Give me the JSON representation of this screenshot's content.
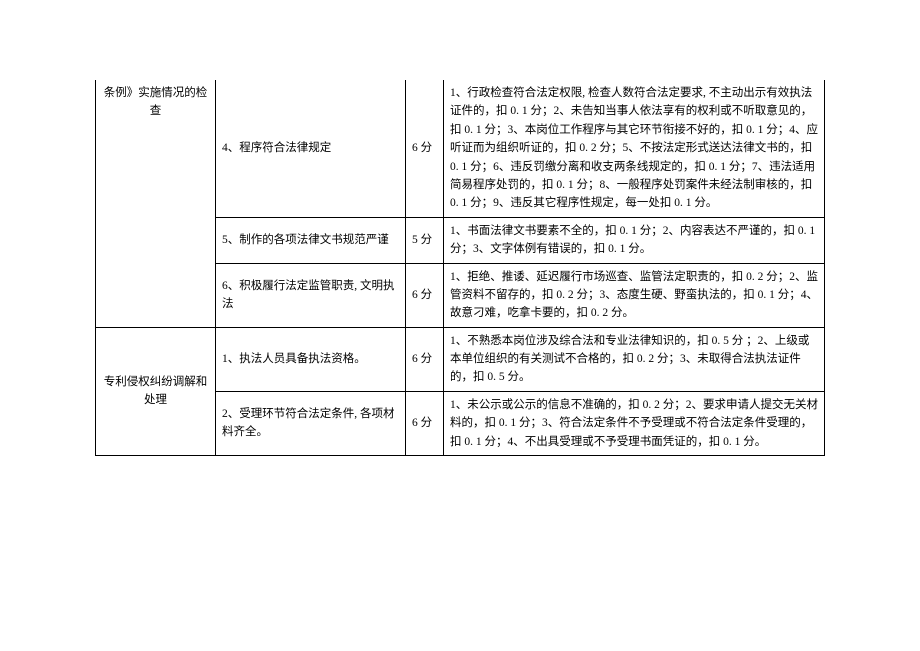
{
  "table": {
    "rows": [
      {
        "category": "条例》实施情况的检查",
        "category_rowspan": 3,
        "category_open_top": true,
        "item": "4、程序符合法律规定",
        "score": "6 分",
        "detail": "1、行政检查符合法定权限, 检查人数符合法定要求, 不主动出示有效执法证件的，扣 0. 1 分；2、未告知当事人依法享有的权利或不听取意见的，扣 0. 1 分；3、本岗位工作程序与其它环节衔接不好的，扣 0. 1 分；4、应听证而为组织听证的，扣 0. 2 分；5、不按法定形式送达法律文书的，扣 0. 1 分；6、违反罚缴分离和收支两条线规定的，扣 0. 1 分；7、违法适用简易程序处罚的，扣 0. 1 分；8、一般程序处罚案件未经法制审核的，扣 0. 1 分；9、违反其它程序性规定，每一处扣 0. 1 分。"
      },
      {
        "item": "5、制作的各项法律文书规范严谨",
        "score": "5 分",
        "detail": "1、书面法律文书要素不全的，扣 0. 1 分；2、内容表达不严谨的，扣 0. 1 分；3、文字体例有错误的，扣 0. 1 分。"
      },
      {
        "item": "6、积极履行法定监管职责, 文明执法",
        "score": "6 分",
        "detail": "1、拒绝、推诿、延迟履行市场巡查、监管法定职责的，扣 0. 2 分；2、监管资料不留存的，扣 0. 2 分；3、态度生硬、野蛮执法的，扣 0. 1 分；4、故意刁难，吃拿卡要的，扣 0. 2 分。"
      },
      {
        "category": "专利侵权纠纷调解和处理",
        "category_rowspan": 2,
        "item": "1、执法人员具备执法资格。",
        "score": "6 分",
        "detail": "1、不熟悉本岗位涉及综合法和专业法律知识的，扣 0. 5 分 ；2、上级或本单位组织的有关测试不合格的，扣 0. 2 分；3、未取得合法执法证件的，扣 0. 5 分。"
      },
      {
        "item": "2、受理环节符合法定条件, 各项材料齐全。",
        "score": "6 分",
        "detail": "1、未公示或公示的信息不准确的，扣 0. 2 分；2、要求申请人提交无关材料的，扣 0. 1 分；3、符合法定条件不予受理或不符合法定条件受理的，扣 0. 1 分；4、不出具受理或不予受理书面凭证的，扣 0. 1 分。"
      }
    ]
  }
}
